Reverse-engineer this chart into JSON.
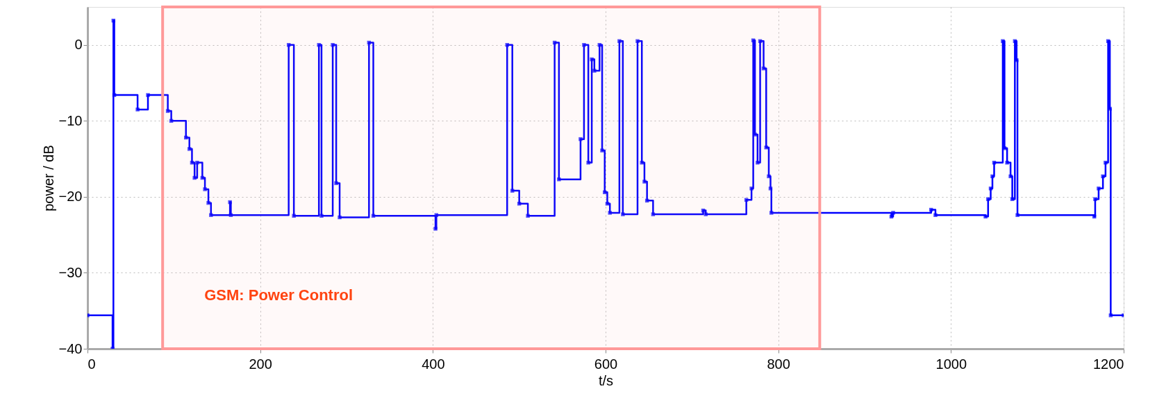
{
  "chart_data": {
    "type": "step",
    "xlabel": "t/s",
    "ylabel": "power / dB",
    "xlim": [
      0,
      1200
    ],
    "ylim": [
      -40,
      5
    ],
    "xticks": [
      0,
      200,
      400,
      600,
      800,
      1000,
      1200
    ],
    "yticks": [
      -40,
      -30,
      -20,
      -10,
      0
    ],
    "grid": true,
    "marker": "square",
    "line_style": "solid",
    "series": [
      {
        "color": "#0000ff",
        "x": [
          0,
          29,
          30,
          31,
          58,
          70,
          93,
          97,
          114,
          118,
          121,
          124,
          127,
          133,
          136,
          140,
          143,
          165,
          166,
          233,
          239,
          268,
          271,
          284,
          288,
          292,
          326,
          331,
          403,
          404,
          486,
          492,
          500,
          510,
          541,
          546,
          571,
          575,
          580,
          584,
          587,
          593,
          596,
          599,
          602,
          605,
          616,
          620,
          637,
          642,
          645,
          648,
          655,
          713,
          716,
          763,
          769,
          771,
          773,
          776,
          779,
          783,
          786,
          789,
          791,
          792,
          931,
          933,
          977,
          982,
          1040,
          1043,
          1046,
          1048,
          1050,
          1060,
          1062,
          1065,
          1069,
          1071,
          1074,
          1076,
          1077,
          1166,
          1167,
          1171,
          1176,
          1179,
          1182,
          1184,
          1185,
          1200
        ],
        "values": [
          -35.6,
          -40,
          3.2,
          -6.6,
          -8.5,
          -6.6,
          -8.7,
          -10,
          -12.2,
          -13.7,
          -15.5,
          -17.5,
          -15.5,
          -17.5,
          -19,
          -20.8,
          -22.4,
          -20.7,
          -22.4,
          0,
          -22.5,
          0,
          -22.5,
          0,
          -18.2,
          -22.7,
          0.3,
          -22.5,
          -24.2,
          -22.4,
          0,
          -19.2,
          -20.9,
          -22.5,
          0.3,
          -17.7,
          -12.4,
          0,
          -15.5,
          -1.9,
          -3.4,
          0,
          -13.9,
          -19.4,
          -20.9,
          -22.1,
          0.5,
          -22.3,
          0.5,
          -15.5,
          -18,
          -20.5,
          -22.3,
          -21.8,
          -22.3,
          -20.4,
          -18.9,
          0.6,
          -11.8,
          -15.5,
          0.5,
          -3.1,
          -13.5,
          -17.3,
          -18.9,
          -22.1,
          -22.6,
          -22.1,
          -21.7,
          -22.4,
          -22.6,
          -20.3,
          -18.9,
          -17.3,
          -15.5,
          0.5,
          -13.6,
          -15.5,
          -17.3,
          -20.3,
          0.5,
          -2,
          -22.4,
          -22.6,
          -20.3,
          -18.9,
          -17.3,
          -15.5,
          0.5,
          -8.4,
          -35.6,
          -35.6
        ]
      }
    ],
    "bands": [
      {
        "axis": "x",
        "from": 87,
        "to": 848,
        "label": "GSM: Power Control",
        "color": "#ff9999"
      }
    ]
  }
}
